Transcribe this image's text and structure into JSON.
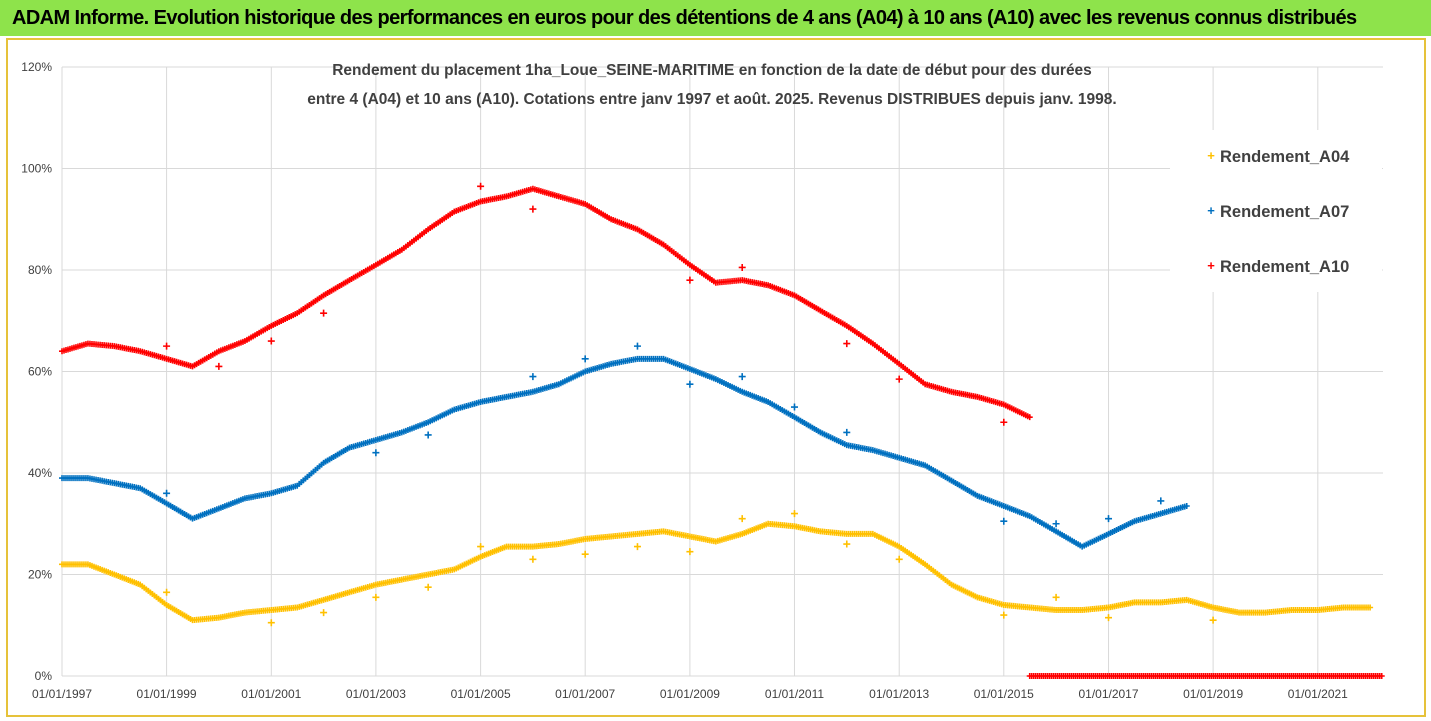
{
  "header": {
    "title": "ADAM Informe. Evolution historique des performances en euros pour des détentions de 4 ans (A04) à 10 ans (A10) avec les revenus connus distribués"
  },
  "colors": {
    "banner": "#8ee34b",
    "border": "#e6c23a",
    "A04": "#ffc000",
    "A07": "#0070c0",
    "A10": "#ff0000",
    "grid": "#d9d9d9"
  },
  "chart_data": {
    "type": "scatter",
    "title_lines": [
      "Rendement du placement 1ha_Loue_SEINE-MARITIME  en fonction de la date de début pour des durées",
      "entre 4 (A04) et 10 ans (A10). Cotations entre janv 1997 et août. 2025. Revenus DISTRIBUES depuis janv. 1998."
    ],
    "xlabel": "",
    "ylabel": "",
    "x_axis_type": "date",
    "xlim": [
      "1997-01-01",
      "2022-04-01"
    ],
    "x_ticks": [
      "01/01/1997",
      "01/01/1999",
      "01/01/2001",
      "01/01/2003",
      "01/01/2005",
      "01/01/2007",
      "01/01/2009",
      "01/01/2011",
      "01/01/2013",
      "01/01/2015",
      "01/01/2017",
      "01/01/2019",
      "01/01/2021"
    ],
    "ylim": [
      0,
      1.2
    ],
    "y_ticks": [
      "0%",
      "20%",
      "40%",
      "60%",
      "80%",
      "100%",
      "120%"
    ],
    "grid": "on (vertical and horizontal)",
    "legend_position": "top-right",
    "marker": "+",
    "series": [
      {
        "name": "Rendement_A04",
        "color": "#ffc000",
        "points": [
          [
            "1997-01-01",
            0.22
          ],
          [
            "1997-07-01",
            0.22
          ],
          [
            "1998-01-01",
            0.2
          ],
          [
            "1998-07-01",
            0.18
          ],
          [
            "1999-01-01",
            0.14
          ],
          [
            "1999-07-01",
            0.11
          ],
          [
            "2000-01-01",
            0.115
          ],
          [
            "2000-07-01",
            0.125
          ],
          [
            "2001-01-01",
            0.13
          ],
          [
            "2001-07-01",
            0.135
          ],
          [
            "2002-01-01",
            0.15
          ],
          [
            "2002-07-01",
            0.165
          ],
          [
            "2003-01-01",
            0.18
          ],
          [
            "2003-07-01",
            0.19
          ],
          [
            "2004-01-01",
            0.2
          ],
          [
            "2004-07-01",
            0.21
          ],
          [
            "2005-01-01",
            0.235
          ],
          [
            "2005-07-01",
            0.255
          ],
          [
            "2006-01-01",
            0.255
          ],
          [
            "2006-07-01",
            0.26
          ],
          [
            "2007-01-01",
            0.27
          ],
          [
            "2007-07-01",
            0.275
          ],
          [
            "2008-01-01",
            0.28
          ],
          [
            "2008-07-01",
            0.285
          ],
          [
            "2009-01-01",
            0.275
          ],
          [
            "2009-07-01",
            0.265
          ],
          [
            "2010-01-01",
            0.28
          ],
          [
            "2010-07-01",
            0.3
          ],
          [
            "2011-01-01",
            0.295
          ],
          [
            "2011-07-01",
            0.285
          ],
          [
            "2012-01-01",
            0.28
          ],
          [
            "2012-07-01",
            0.28
          ],
          [
            "2013-01-01",
            0.255
          ],
          [
            "2013-07-01",
            0.22
          ],
          [
            "2014-01-01",
            0.18
          ],
          [
            "2014-07-01",
            0.155
          ],
          [
            "2015-01-01",
            0.14
          ],
          [
            "2015-07-01",
            0.135
          ],
          [
            "2016-01-01",
            0.13
          ],
          [
            "2016-07-01",
            0.13
          ],
          [
            "2017-01-01",
            0.135
          ],
          [
            "2017-07-01",
            0.145
          ],
          [
            "2018-01-01",
            0.145
          ],
          [
            "2018-07-01",
            0.15
          ],
          [
            "2019-01-01",
            0.135
          ],
          [
            "2019-07-01",
            0.125
          ],
          [
            "2020-01-01",
            0.125
          ],
          [
            "2020-07-01",
            0.13
          ],
          [
            "2021-01-01",
            0.13
          ],
          [
            "2021-07-01",
            0.135
          ],
          [
            "2022-01-01",
            0.135
          ]
        ],
        "outliers": [
          [
            "1999-01-01",
            0.165
          ],
          [
            "2001-01-01",
            0.105
          ],
          [
            "2002-01-01",
            0.125
          ],
          [
            "2003-01-01",
            0.155
          ],
          [
            "2004-01-01",
            0.175
          ],
          [
            "2005-01-01",
            0.255
          ],
          [
            "2006-01-01",
            0.23
          ],
          [
            "2007-01-01",
            0.24
          ],
          [
            "2008-01-01",
            0.255
          ],
          [
            "2009-01-01",
            0.245
          ],
          [
            "2010-01-01",
            0.31
          ],
          [
            "2011-01-01",
            0.32
          ],
          [
            "2012-01-01",
            0.26
          ],
          [
            "2013-01-01",
            0.23
          ],
          [
            "2015-01-01",
            0.12
          ],
          [
            "2016-01-01",
            0.155
          ],
          [
            "2017-01-01",
            0.115
          ],
          [
            "2019-01-01",
            0.11
          ]
        ]
      },
      {
        "name": "Rendement_A07",
        "color": "#0070c0",
        "points": [
          [
            "1997-01-01",
            0.39
          ],
          [
            "1997-07-01",
            0.39
          ],
          [
            "1998-01-01",
            0.38
          ],
          [
            "1998-07-01",
            0.37
          ],
          [
            "1999-01-01",
            0.34
          ],
          [
            "1999-07-01",
            0.31
          ],
          [
            "2000-01-01",
            0.33
          ],
          [
            "2000-07-01",
            0.35
          ],
          [
            "2001-01-01",
            0.36
          ],
          [
            "2001-07-01",
            0.375
          ],
          [
            "2002-01-01",
            0.42
          ],
          [
            "2002-07-01",
            0.45
          ],
          [
            "2003-01-01",
            0.465
          ],
          [
            "2003-07-01",
            0.48
          ],
          [
            "2004-01-01",
            0.5
          ],
          [
            "2004-07-01",
            0.525
          ],
          [
            "2005-01-01",
            0.54
          ],
          [
            "2005-07-01",
            0.55
          ],
          [
            "2006-01-01",
            0.56
          ],
          [
            "2006-07-01",
            0.575
          ],
          [
            "2007-01-01",
            0.6
          ],
          [
            "2007-07-01",
            0.615
          ],
          [
            "2008-01-01",
            0.625
          ],
          [
            "2008-07-01",
            0.625
          ],
          [
            "2009-01-01",
            0.605
          ],
          [
            "2009-07-01",
            0.585
          ],
          [
            "2010-01-01",
            0.56
          ],
          [
            "2010-07-01",
            0.54
          ],
          [
            "2011-01-01",
            0.51
          ],
          [
            "2011-07-01",
            0.48
          ],
          [
            "2012-01-01",
            0.455
          ],
          [
            "2012-07-01",
            0.445
          ],
          [
            "2013-01-01",
            0.43
          ],
          [
            "2013-07-01",
            0.415
          ],
          [
            "2014-01-01",
            0.385
          ],
          [
            "2014-07-01",
            0.355
          ],
          [
            "2015-01-01",
            0.335
          ],
          [
            "2015-07-01",
            0.315
          ],
          [
            "2016-01-01",
            0.285
          ],
          [
            "2016-07-01",
            0.255
          ],
          [
            "2017-01-01",
            0.28
          ],
          [
            "2017-07-01",
            0.305
          ],
          [
            "2018-01-01",
            0.32
          ],
          [
            "2018-07-01",
            0.335
          ]
        ],
        "outliers": [
          [
            "1999-01-01",
            0.36
          ],
          [
            "2003-01-01",
            0.44
          ],
          [
            "2004-01-01",
            0.475
          ],
          [
            "2006-01-01",
            0.59
          ],
          [
            "2007-01-01",
            0.625
          ],
          [
            "2008-01-01",
            0.65
          ],
          [
            "2009-01-01",
            0.575
          ],
          [
            "2010-01-01",
            0.59
          ],
          [
            "2011-01-01",
            0.53
          ],
          [
            "2012-01-01",
            0.48
          ],
          [
            "2015-01-01",
            0.305
          ],
          [
            "2016-01-01",
            0.3
          ],
          [
            "2017-01-01",
            0.31
          ],
          [
            "2018-01-01",
            0.345
          ]
        ]
      },
      {
        "name": "Rendement_A10",
        "color": "#ff0000",
        "points": [
          [
            "1997-01-01",
            0.64
          ],
          [
            "1997-07-01",
            0.655
          ],
          [
            "1998-01-01",
            0.65
          ],
          [
            "1998-07-01",
            0.64
          ],
          [
            "1999-01-01",
            0.625
          ],
          [
            "1999-07-01",
            0.61
          ],
          [
            "2000-01-01",
            0.64
          ],
          [
            "2000-07-01",
            0.66
          ],
          [
            "2001-01-01",
            0.69
          ],
          [
            "2001-07-01",
            0.715
          ],
          [
            "2002-01-01",
            0.75
          ],
          [
            "2002-07-01",
            0.78
          ],
          [
            "2003-01-01",
            0.81
          ],
          [
            "2003-07-01",
            0.84
          ],
          [
            "2004-01-01",
            0.88
          ],
          [
            "2004-07-01",
            0.915
          ],
          [
            "2005-01-01",
            0.935
          ],
          [
            "2005-07-01",
            0.945
          ],
          [
            "2006-01-01",
            0.96
          ],
          [
            "2006-07-01",
            0.945
          ],
          [
            "2007-01-01",
            0.93
          ],
          [
            "2007-07-01",
            0.9
          ],
          [
            "2008-01-01",
            0.88
          ],
          [
            "2008-07-01",
            0.85
          ],
          [
            "2009-01-01",
            0.81
          ],
          [
            "2009-07-01",
            0.775
          ],
          [
            "2010-01-01",
            0.78
          ],
          [
            "2010-07-01",
            0.77
          ],
          [
            "2011-01-01",
            0.75
          ],
          [
            "2011-07-01",
            0.72
          ],
          [
            "2012-01-01",
            0.69
          ],
          [
            "2012-07-01",
            0.655
          ],
          [
            "2013-01-01",
            0.615
          ],
          [
            "2013-07-01",
            0.575
          ],
          [
            "2014-01-01",
            0.56
          ],
          [
            "2014-07-01",
            0.55
          ],
          [
            "2015-01-01",
            0.535
          ],
          [
            "2015-07-01",
            0.51
          ]
        ],
        "outliers": [
          [
            "1999-01-01",
            0.65
          ],
          [
            "2000-01-01",
            0.61
          ],
          [
            "2001-01-01",
            0.66
          ],
          [
            "2002-01-01",
            0.715
          ],
          [
            "2005-01-01",
            0.965
          ],
          [
            "2006-01-01",
            0.92
          ],
          [
            "2009-01-01",
            0.78
          ],
          [
            "2010-01-01",
            0.805
          ],
          [
            "2012-01-01",
            0.655
          ],
          [
            "2013-01-01",
            0.585
          ],
          [
            "2015-01-01",
            0.5
          ]
        ],
        "zero_range": [
          "2015-07-01",
          "2022-04-01"
        ]
      }
    ]
  }
}
